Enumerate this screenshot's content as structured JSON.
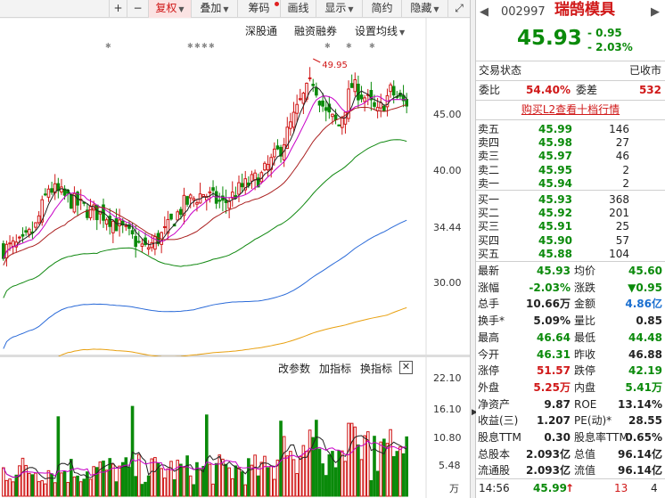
{
  "toolbar": {
    "plus": "+",
    "minus": "−",
    "fuquan": "复权",
    "diejia": "叠加",
    "choumа": "筹码",
    "huaxian": "画线",
    "xianshi": "显示",
    "jianyue": "简约",
    "yincang": "隐藏",
    "fullscreen": "⤢"
  },
  "chart_menu": {
    "shengutong": "深股通",
    "rongzirongquan": "融资融券",
    "shezhijunxian": "设置均线"
  },
  "price_axis": [
    "45.00",
    "40.00",
    "34.44",
    "30.00"
  ],
  "peak_label": "49.95",
  "volume_menu": {
    "gaicanshu": "改参数",
    "jiazhibiao": "加指标",
    "huanzhibiao": "换指标",
    "close": "✕"
  },
  "volume_axis": [
    "22.10",
    "16.10",
    "10.80",
    "5.48",
    "万"
  ],
  "header": {
    "code": "002997",
    "name": "瑞鹄模具",
    "price": "45.93",
    "change": "- 0.95",
    "change_pct": "- 2.03%"
  },
  "status": {
    "label": "交易状态",
    "value": "已收市"
  },
  "weibi": {
    "label": "委比",
    "value": "54.40%",
    "diff_label": "委差",
    "diff_value": "532"
  },
  "l2_link": "购买L2查看十档行情",
  "sells": [
    {
      "label": "卖五",
      "price": "45.99",
      "vol": "146"
    },
    {
      "label": "卖四",
      "price": "45.98",
      "vol": "27"
    },
    {
      "label": "卖三",
      "price": "45.97",
      "vol": "46"
    },
    {
      "label": "卖二",
      "price": "45.95",
      "vol": "2"
    },
    {
      "label": "卖一",
      "price": "45.94",
      "vol": "2"
    }
  ],
  "buys": [
    {
      "label": "买一",
      "price": "45.93",
      "vol": "368"
    },
    {
      "label": "买二",
      "price": "45.92",
      "vol": "201"
    },
    {
      "label": "买三",
      "price": "45.91",
      "vol": "25"
    },
    {
      "label": "买四",
      "price": "45.90",
      "vol": "57"
    },
    {
      "label": "买五",
      "price": "45.88",
      "vol": "104"
    }
  ],
  "stats": [
    {
      "l1": "最新",
      "v1": "45.93",
      "c1": "green",
      "l2": "均价",
      "v2": "45.60",
      "c2": "green"
    },
    {
      "l1": "涨幅",
      "v1": "-2.03%",
      "c1": "green",
      "l2": "涨跌",
      "v2": "▼0.95",
      "c2": "green"
    },
    {
      "l1": "总手",
      "v1": "10.66万",
      "c1": "black",
      "l2": "金额",
      "v2": "4.86亿",
      "c2": "blue"
    },
    {
      "l1": "换手*",
      "v1": "5.09%",
      "c1": "black",
      "l2": "量比",
      "v2": "0.85",
      "c2": "black"
    },
    {
      "l1": "最高",
      "v1": "46.64",
      "c1": "green",
      "l2": "最低",
      "v2": "44.48",
      "c2": "green"
    },
    {
      "l1": "今开",
      "v1": "46.31",
      "c1": "green",
      "l2": "昨收",
      "v2": "46.88",
      "c2": "black"
    },
    {
      "l1": "涨停",
      "v1": "51.57",
      "c1": "red",
      "l2": "跌停",
      "v2": "42.19",
      "c2": "green"
    },
    {
      "l1": "外盘",
      "v1": "5.25万",
      "c1": "red",
      "l2": "内盘",
      "v2": "5.41万",
      "c2": "green"
    },
    {
      "l1": "净资产",
      "v1": "9.87",
      "c1": "black",
      "l2": "ROE",
      "v2": "13.14%",
      "c2": "black"
    },
    {
      "l1": "收益(三)",
      "v1": "1.207",
      "c1": "black",
      "l2": "PE(动)*",
      "v2": "28.55",
      "c2": "black"
    },
    {
      "l1": "股息TTM",
      "v1": "0.30",
      "c1": "black",
      "l2": "股息率TTM",
      "v2": "0.65%",
      "c2": "black"
    },
    {
      "l1": "总股本",
      "v1": "2.093亿",
      "c1": "black",
      "l2": "总值",
      "v2": "96.14亿",
      "c2": "black"
    },
    {
      "l1": "流通股",
      "v1": "2.093亿",
      "c1": "black",
      "l2": "流值",
      "v2": "96.14亿",
      "c2": "black"
    }
  ],
  "tick": {
    "time": "14:56",
    "price": "45.99",
    "arrow": "↑",
    "vol": "13",
    "count": "4"
  },
  "colors": {
    "up": "#d01818",
    "down": "#0a8a0a",
    "ma5": "#222222",
    "ma10": "#c800c8",
    "ma20": "#aa1f1f",
    "ma30": "#108810",
    "ma60": "#2a6ad8",
    "ma120": "#e8a010"
  }
}
